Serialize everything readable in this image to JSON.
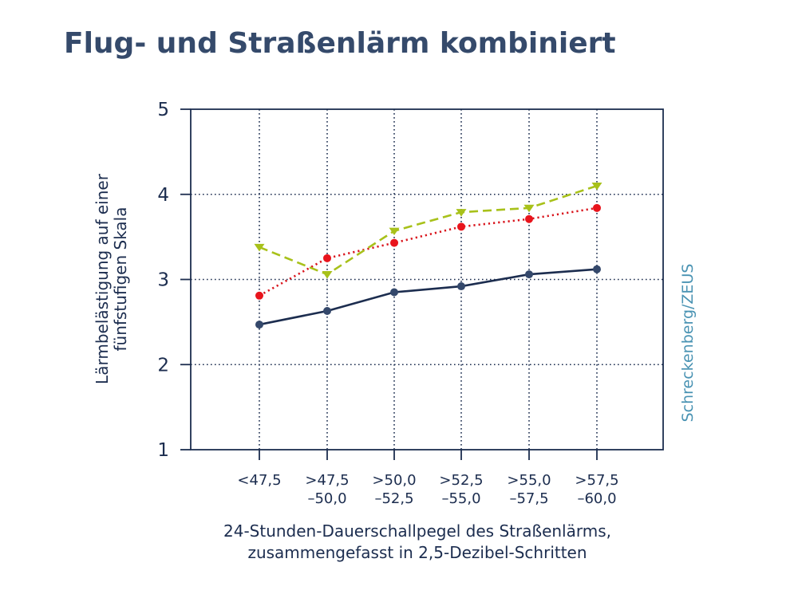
{
  "title": "Flug- und Straßenlärm kombiniert",
  "source": "Schreckenberg/ZEUS",
  "chart_data": {
    "type": "line",
    "title": "Flug- und Straßenlärm kombiniert",
    "xlabel": [
      "24-Stunden-Dauerschallpegel des Straßenlärms,",
      "zusammengefasst in 2,5-Dezibel-Schritten"
    ],
    "ylabel": [
      "Lärmbelästigung auf einer",
      "fünfstufigen Skala"
    ],
    "ylim": [
      1,
      5
    ],
    "yticks": [
      "1",
      "2",
      "3",
      "4",
      "5"
    ],
    "categories": [
      [
        "<47,5"
      ],
      [
        ">47,5",
        "–50,0"
      ],
      [
        ">50,0",
        "–52,5"
      ],
      [
        ">52,5",
        "–55,0"
      ],
      [
        ">55,0",
        "–57,5"
      ],
      [
        ">57,5",
        "–60,0"
      ]
    ],
    "grid": true,
    "series": [
      {
        "name": "series-navy",
        "color": "#1c2d4f",
        "marker_color": "#34486b",
        "line_style": "solid",
        "marker": "circle",
        "values": [
          2.47,
          2.63,
          2.85,
          2.92,
          3.06,
          3.12
        ]
      },
      {
        "name": "series-red",
        "color": "#d9141c",
        "marker_color": "#e8141c",
        "line_style": "dotted",
        "marker": "circle",
        "values": [
          2.81,
          3.25,
          3.43,
          3.62,
          3.71,
          3.84
        ]
      },
      {
        "name": "series-green",
        "color": "#a8c11a",
        "marker_color": "#a8c11a",
        "line_style": "dashed",
        "marker": "triangle-down",
        "values": [
          3.38,
          3.06,
          3.57,
          3.79,
          3.84,
          4.1
        ]
      }
    ]
  }
}
